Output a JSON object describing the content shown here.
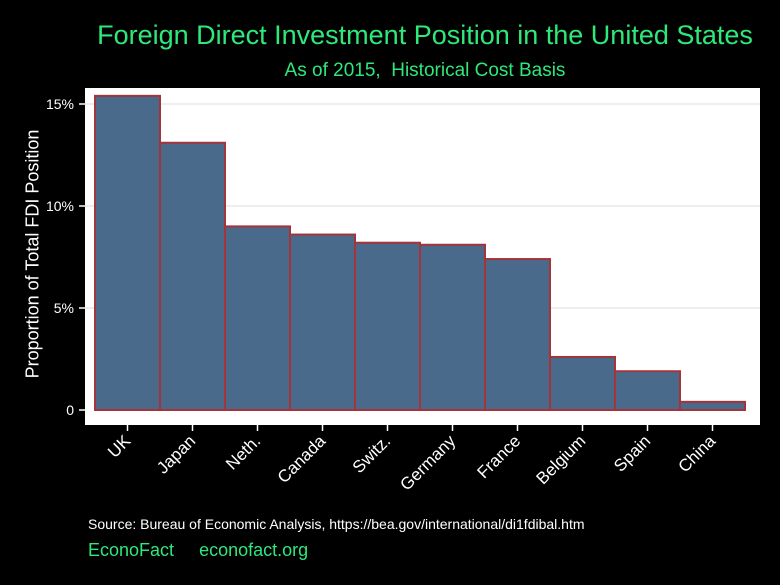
{
  "chart_data": {
    "type": "bar",
    "title": "Foreign Direct Investment Position in the United States",
    "subtitle": "As of 2015,  Historical Cost Basis",
    "ylabel": "Proportion of Total FDI Position",
    "xlabel": "",
    "categories": [
      "UK",
      "Japan",
      "Neth.",
      "Canada",
      "Switz.",
      "Germany",
      "France",
      "Belgium",
      "Spain",
      "China"
    ],
    "values": [
      15.4,
      13.1,
      9.0,
      8.6,
      8.2,
      8.1,
      7.4,
      2.6,
      1.9,
      0.4
    ],
    "ylim": [
      0,
      16
    ],
    "yticks": [
      {
        "value": 0,
        "label": "0"
      },
      {
        "value": 5,
        "label": "5%"
      },
      {
        "value": 10,
        "label": "10%"
      },
      {
        "value": 15,
        "label": "15%"
      }
    ],
    "grid": true,
    "legend": "none",
    "colors": {
      "bar_fill": "#4a6a8c",
      "bar_outline": "#a3343a",
      "plot_background": "#ffffff",
      "grid": "#e6eaee",
      "title": "#2ee87a"
    }
  },
  "source": "Source: Bureau of Economic Analysis, https://bea.gov/international/di1fdibal.htm",
  "footer": {
    "brand": "EconoFact",
    "site": "econofact.org"
  }
}
